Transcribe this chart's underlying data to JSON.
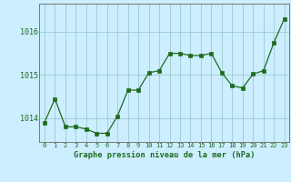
{
  "hours": [
    0,
    1,
    2,
    3,
    4,
    5,
    6,
    7,
    8,
    9,
    10,
    11,
    12,
    13,
    14,
    15,
    16,
    17,
    18,
    19,
    20,
    21,
    22,
    23
  ],
  "pressure": [
    1013.9,
    1014.45,
    1013.8,
    1013.8,
    1013.75,
    1013.65,
    1013.65,
    1014.05,
    1014.65,
    1014.65,
    1015.05,
    1015.1,
    1015.5,
    1015.5,
    1015.45,
    1015.45,
    1015.5,
    1015.05,
    1014.75,
    1014.7,
    1015.02,
    1015.1,
    1015.75,
    1016.3
  ],
  "line_color": "#1e6b1e",
  "marker": "s",
  "marker_size": 2.2,
  "bg_color": "#cceeff",
  "grid_color": "#99cccc",
  "tick_color": "#1e6b1e",
  "xlabel": "Graphe pression niveau de la mer (hPa)",
  "xlabel_color": "#1e6b1e",
  "ylim_min": 1013.45,
  "ylim_max": 1016.65,
  "yticks": [
    1014,
    1015,
    1016
  ],
  "spine_color": "#777777"
}
